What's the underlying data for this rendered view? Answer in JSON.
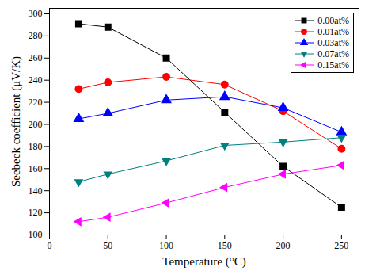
{
  "chart_data": {
    "type": "line",
    "x_label": "Temperature (°C)",
    "y_label": "Seebeck coefficient (μV/K)",
    "x": [
      25,
      50,
      100,
      150,
      200,
      250
    ],
    "series": [
      {
        "name": "0.00at%",
        "color": "#000000",
        "marker": "square",
        "values": [
          291,
          288,
          260,
          211,
          162,
          125
        ]
      },
      {
        "name": "0.01at%",
        "color": "#ff0000",
        "marker": "circle",
        "values": [
          232,
          238,
          243,
          236,
          212,
          178
        ]
      },
      {
        "name": "0.03at%",
        "color": "#0000ff",
        "marker": "triangle-up",
        "values": [
          205,
          210,
          222,
          225,
          215,
          193
        ]
      },
      {
        "name": "0.07at%",
        "color": "#008080",
        "marker": "triangle-down",
        "values": [
          148,
          155,
          167,
          181,
          184,
          188
        ]
      },
      {
        "name": "0.15at%",
        "color": "#ff00ff",
        "marker": "triangle-left",
        "values": [
          112,
          116,
          129,
          143,
          155,
          163
        ]
      }
    ],
    "xlim": [
      0,
      265
    ],
    "xticks": [
      0,
      50,
      100,
      150,
      200,
      250
    ],
    "ylim": [
      100,
      305
    ],
    "yticks": [
      100,
      120,
      140,
      160,
      180,
      200,
      220,
      240,
      260,
      280,
      300
    ],
    "legend": "upper right"
  }
}
